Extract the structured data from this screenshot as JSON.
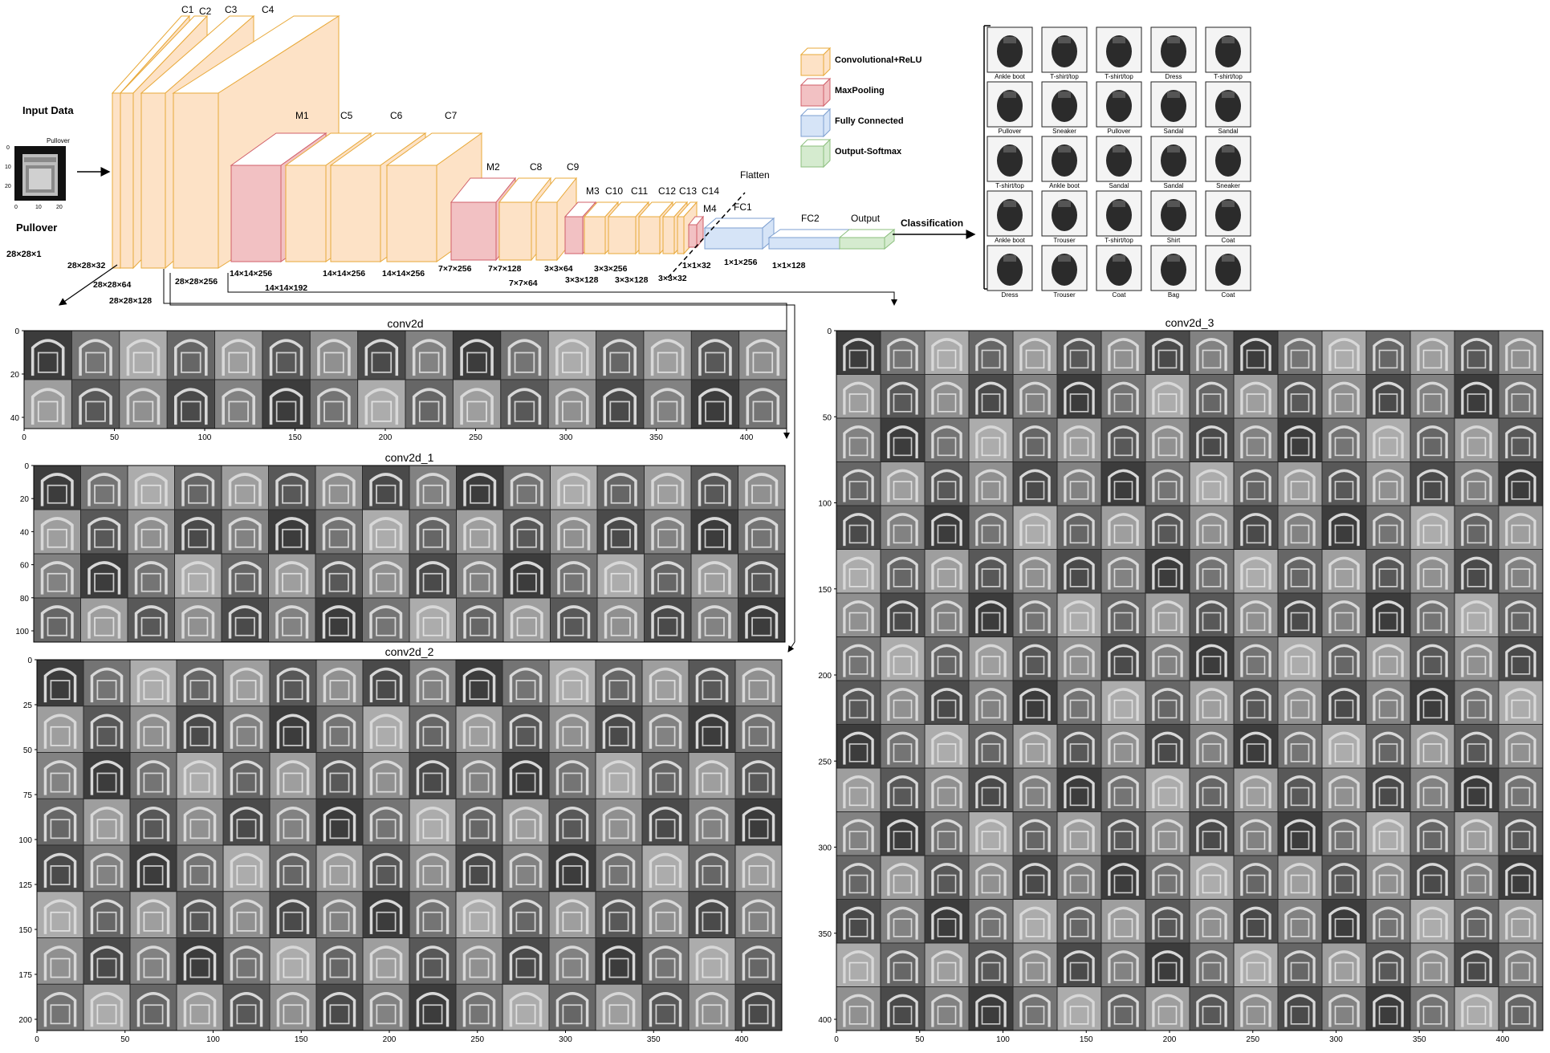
{
  "palette": {
    "conv_fill": "#fde2c6",
    "conv_stroke": "#e8a93a",
    "pool_fill": "#f2c1c3",
    "pool_stroke": "#d0606a",
    "fc_fill": "#d6e4f7",
    "fc_stroke": "#7d9fd0",
    "out_fill": "#d5ebcf",
    "out_stroke": "#8cbf7e",
    "map_dark": "#2a2a2a",
    "map_light": "#d8d8d8"
  },
  "input": {
    "heading": "Input Data",
    "thumb_title": "Pullover",
    "thumb_yticks": [
      "0",
      "10",
      "20"
    ],
    "thumb_xticks": [
      "0",
      "10",
      "20"
    ],
    "label": "Pullover",
    "shape": "28×28×1"
  },
  "layers": {
    "conv_labels": [
      "C1",
      "C2",
      "C3",
      "C4"
    ],
    "m1": "M1",
    "c5": "C5",
    "c6": "C6",
    "c7": "C7",
    "m2": "M2",
    "c8": "C8",
    "c9": "C9",
    "m3": "M3",
    "c10": "C10",
    "c11": "C11",
    "c12": "C12",
    "c13": "C13",
    "c14": "C14",
    "m4": "M4",
    "flatten": "Flatten",
    "fc1": "FC1",
    "fc2": "FC2",
    "output": "Output",
    "classification": "Classification"
  },
  "shapes": {
    "s1": "28×28×32",
    "s2": "28×28×64",
    "s3": "28×28×128",
    "s4": "28×28×256",
    "s5": "14×14×256",
    "s6": "14×14×192",
    "s7": "14×14×256",
    "s8": "14×14×256",
    "s9": "7×7×256",
    "s10": "7×7×128",
    "s11": "7×7×64",
    "s12": "3×3×64",
    "s13": "3×3×256",
    "s14": "3×3×128",
    "s15": "3×3×128",
    "s16": "3×3×32",
    "s17": "1×1×32",
    "s18": "1×1×256",
    "s19": "1×1×128"
  },
  "legend": [
    {
      "label": "Convolutional+ReLU",
      "kind": "conv"
    },
    {
      "label": "MaxPooling",
      "kind": "pool"
    },
    {
      "label": "Fully Connected",
      "kind": "fc"
    },
    {
      "label": "Output-Softmax",
      "kind": "out"
    }
  ],
  "samples": [
    [
      "Ankle boot",
      "T-shirt/top",
      "T-shirt/top",
      "Dress",
      "T-shirt/top"
    ],
    [
      "Pullover",
      "Sneaker",
      "Pullover",
      "Sandal",
      "Sandal"
    ],
    [
      "T-shirt/top",
      "Ankle boot",
      "Sandal",
      "Sandal",
      "Sneaker"
    ],
    [
      "Ankle boot",
      "Trouser",
      "T-shirt/top",
      "Shirt",
      "Coat"
    ],
    [
      "Dress",
      "Trouser",
      "Coat",
      "Bag",
      "Coat"
    ]
  ],
  "feature_maps": [
    {
      "title": "conv2d",
      "rows": 2,
      "cols": 16,
      "yticks": [
        "0",
        "20",
        "40"
      ],
      "xticks": [
        "0",
        "50",
        "100",
        "150",
        "200",
        "250",
        "300",
        "350",
        "400"
      ]
    },
    {
      "title": "conv2d_1",
      "rows": 4,
      "cols": 16,
      "yticks": [
        "0",
        "20",
        "40",
        "60",
        "80",
        "100"
      ],
      "xticks": []
    },
    {
      "title": "conv2d_2",
      "rows": 8,
      "cols": 16,
      "yticks": [
        "0",
        "25",
        "50",
        "75",
        "100",
        "125",
        "150",
        "175",
        "200"
      ],
      "xticks": [
        "0",
        "50",
        "100",
        "150",
        "200",
        "250",
        "300",
        "350",
        "400"
      ]
    },
    {
      "title": "conv2d_3",
      "rows": 16,
      "cols": 16,
      "yticks": [
        "0",
        "50",
        "100",
        "150",
        "200",
        "250",
        "300",
        "350",
        "400"
      ],
      "xticks": [
        "0",
        "50",
        "100",
        "150",
        "200",
        "250",
        "300",
        "350",
        "400"
      ]
    }
  ]
}
